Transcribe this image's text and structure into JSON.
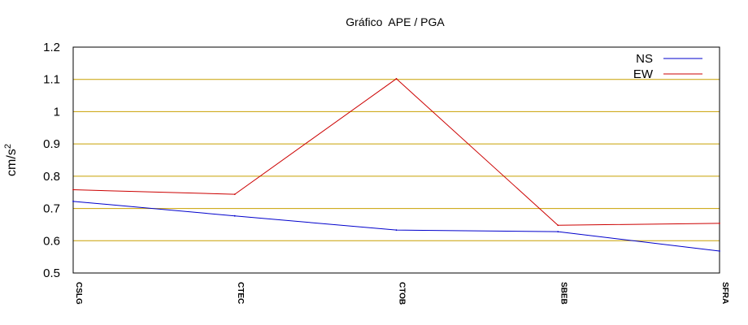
{
  "chart_data": {
    "type": "line",
    "title": "Gráfico  APE / PGA",
    "ylabel": "cm/s",
    "ylabel_sup": "2",
    "ylim": [
      0.5,
      1.2
    ],
    "yticks": [
      0.5,
      0.6,
      0.7,
      0.8,
      0.9,
      1,
      1.1,
      1.2
    ],
    "ytick_labels": [
      "0.5",
      "0.6",
      "0.7",
      "0.8",
      "0.9",
      "1",
      "1.1",
      "1.2"
    ],
    "categories": [
      "CSLG",
      "CTEC",
      "CTOB",
      "SBEB",
      "SFRA"
    ],
    "grid": true,
    "legend_position": "top-right",
    "series": [
      {
        "name": "NS",
        "color": "#0000cc",
        "values": [
          0.722,
          0.677,
          0.633,
          0.628,
          0.568
        ]
      },
      {
        "name": "EW",
        "color": "#cc0000",
        "values": [
          0.758,
          0.744,
          1.102,
          0.648,
          0.654
        ]
      }
    ],
    "colors": {
      "grid": "#c8a000",
      "axis": "#000000"
    }
  }
}
